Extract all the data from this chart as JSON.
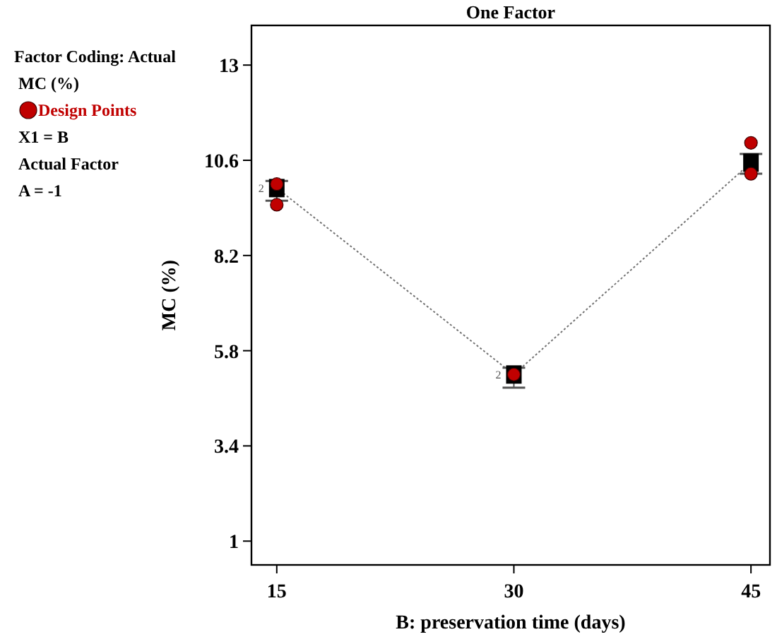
{
  "chart_data": {
    "type": "line",
    "title": "One Factor",
    "xlabel": "B: preservation time (days)",
    "ylabel": "MC (%)",
    "xlim": [
      13.4,
      46.2
    ],
    "xticks": [
      15,
      30,
      45
    ],
    "ylim": [
      0.4,
      14
    ],
    "yticks": [
      13,
      10.6,
      8.2,
      5.8,
      3.4,
      1
    ],
    "grid": false,
    "legend": "top left",
    "annotations": [
      "Factor Coding: Actual",
      "MC (%)",
      "X1 = B",
      "Actual Factor",
      "A = -1",
      {
        "text": "2",
        "x": 15,
        "y": 9.9
      },
      {
        "text": "2",
        "x": 30,
        "y": 5.2
      }
    ],
    "series": [
      {
        "color": "#000000",
        "x": [
          15,
          30,
          45
        ],
        "values": [
          9.9,
          5.2,
          10.54
        ],
        "errors": [
          [
            9.58,
            10.08
          ],
          [
            4.87,
            5.37
          ],
          [
            10.26,
            10.76
          ]
        ],
        "marker": "square",
        "line_style": "dotted"
      },
      {
        "type": "scatter",
        "name": "Design Points",
        "color": "#c00000",
        "x": [
          15,
          15,
          30,
          45,
          45
        ],
        "values": [
          10.0,
          9.48,
          5.2,
          11.04,
          10.26
        ],
        "marker": "circle"
      }
    ]
  }
}
